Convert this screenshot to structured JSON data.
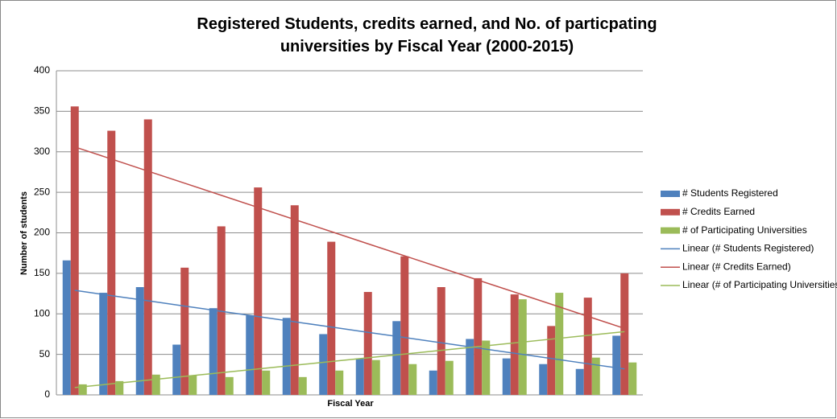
{
  "chart_data": {
    "type": "bar",
    "title": "Registered Students, credits earned, and No. of particpating universities by Fiscal Year (2000-2015)",
    "xlabel": "Fiscal Year",
    "ylabel": "Number of students",
    "categories": [
      null,
      null,
      null,
      null,
      null,
      null,
      null,
      null,
      null,
      null,
      null,
      null,
      null,
      null,
      null,
      null
    ],
    "ylim": [
      0,
      400
    ],
    "yticks": [
      0,
      50,
      100,
      150,
      200,
      250,
      300,
      350,
      400
    ],
    "grid": true,
    "legend": "right",
    "series": [
      {
        "name": "# Students Registered",
        "type": "bar",
        "color": "#4f81bd",
        "values": [
          166,
          126,
          133,
          62,
          107,
          98,
          95,
          75,
          45,
          91,
          30,
          69,
          45,
          38,
          32,
          73
        ]
      },
      {
        "name": "# Credits Earned",
        "type": "bar",
        "color": "#c0504d",
        "values": [
          356,
          326,
          340,
          157,
          208,
          256,
          234,
          189,
          127,
          171,
          133,
          144,
          124,
          85,
          120,
          150
        ]
      },
      {
        "name": "# of Participating Universities",
        "type": "bar",
        "color": "#9bbb59",
        "values": [
          13,
          17,
          25,
          24,
          22,
          30,
          22,
          30,
          43,
          38,
          42,
          67,
          118,
          126,
          46,
          40
        ]
      },
      {
        "name": "Linear (# Students Registered)",
        "type": "line",
        "color": "#4f81bd",
        "values": [
          129,
          122.5,
          116.1,
          109.6,
          103.1,
          96.6,
          90.2,
          83.7,
          77.2,
          70.8,
          64.3,
          57.8,
          51.4,
          44.9,
          38.4,
          32
        ]
      },
      {
        "name": "Linear (# Credits Earned)",
        "type": "line",
        "color": "#c0504d",
        "values": [
          306,
          291.1,
          276.1,
          261.2,
          246.3,
          231.3,
          216.4,
          201.5,
          186.5,
          171.6,
          156.7,
          141.7,
          126.8,
          111.9,
          96.9,
          82
        ]
      },
      {
        "name": "Linear (# of Participating Universities)",
        "type": "line",
        "color": "#9bbb59",
        "values": [
          9,
          13.6,
          18.2,
          22.8,
          27.4,
          32,
          36.6,
          41.2,
          45.8,
          50.4,
          55,
          59.6,
          64.2,
          68.8,
          73.4,
          78
        ]
      }
    ]
  }
}
